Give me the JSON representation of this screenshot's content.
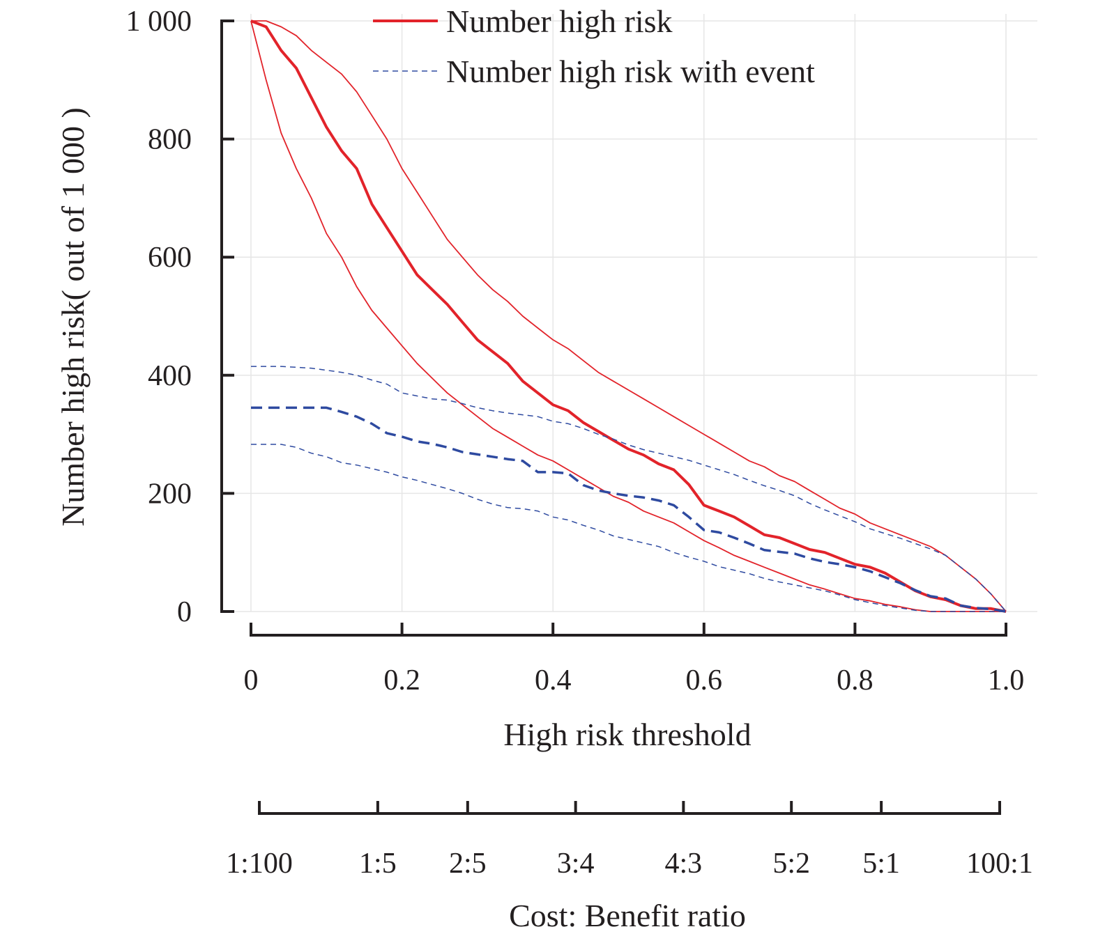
{
  "chart_data": {
    "type": "line",
    "xlabel": "High risk threshold",
    "ylabel": "Number high risk",
    "ylabel_suffix": "( out of 1 000 )",
    "secondary_xlabel": "Cost: Benefit ratio",
    "xlim": [
      0,
      1
    ],
    "ylim": [
      0,
      1000
    ],
    "grid": true,
    "legend_position": "top",
    "x_ticks": [
      0,
      0.2,
      0.4,
      0.6,
      0.8,
      1.0
    ],
    "x_tick_labels": [
      "0",
      "0.2",
      "0.4",
      "0.6",
      "0.8",
      "1.0"
    ],
    "y_ticks": [
      0,
      200,
      400,
      600,
      800,
      1000
    ],
    "y_tick_labels": [
      "0",
      "200",
      "400",
      "600",
      "800",
      "1 000"
    ],
    "secondary_ticks": [
      0.0099,
      0.1667,
      0.2857,
      0.4286,
      0.5714,
      0.7143,
      0.8333,
      0.9901
    ],
    "secondary_tick_labels": [
      "1:100",
      "1:5",
      "2:5",
      "3:4",
      "4:3",
      "5:2",
      "5:1",
      "100:1"
    ],
    "legend": [
      {
        "label": "Number high risk",
        "color": "#e2232a",
        "style": "solid"
      },
      {
        "label": "Number high risk with event",
        "color": "#2e4aa0",
        "style": "dashed"
      }
    ],
    "series": [
      {
        "legend_ref": "Number high risk",
        "color": "#e2232a",
        "style": "solid",
        "width": 4,
        "points": [
          [
            0,
            1000
          ],
          [
            0.02,
            990
          ],
          [
            0.04,
            950
          ],
          [
            0.06,
            920
          ],
          [
            0.08,
            870
          ],
          [
            0.1,
            820
          ],
          [
            0.12,
            780
          ],
          [
            0.14,
            750
          ],
          [
            0.16,
            690
          ],
          [
            0.18,
            650
          ],
          [
            0.2,
            610
          ],
          [
            0.22,
            570
          ],
          [
            0.24,
            545
          ],
          [
            0.26,
            520
          ],
          [
            0.28,
            490
          ],
          [
            0.3,
            460
          ],
          [
            0.32,
            440
          ],
          [
            0.34,
            420
          ],
          [
            0.36,
            390
          ],
          [
            0.38,
            370
          ],
          [
            0.4,
            350
          ],
          [
            0.42,
            340
          ],
          [
            0.44,
            320
          ],
          [
            0.46,
            305
          ],
          [
            0.48,
            290
          ],
          [
            0.5,
            275
          ],
          [
            0.52,
            265
          ],
          [
            0.54,
            250
          ],
          [
            0.56,
            240
          ],
          [
            0.58,
            215
          ],
          [
            0.6,
            180
          ],
          [
            0.62,
            170
          ],
          [
            0.64,
            160
          ],
          [
            0.66,
            145
          ],
          [
            0.68,
            130
          ],
          [
            0.7,
            125
          ],
          [
            0.72,
            115
          ],
          [
            0.74,
            105
          ],
          [
            0.76,
            100
          ],
          [
            0.78,
            90
          ],
          [
            0.8,
            80
          ],
          [
            0.82,
            75
          ],
          [
            0.84,
            65
          ],
          [
            0.86,
            50
          ],
          [
            0.88,
            35
          ],
          [
            0.9,
            25
          ],
          [
            0.92,
            20
          ],
          [
            0.94,
            10
          ],
          [
            0.96,
            5
          ],
          [
            0.98,
            5
          ],
          [
            1.0,
            0
          ]
        ]
      },
      {
        "legend_ref": "Number high risk",
        "color": "#e2232a",
        "style": "solid",
        "width": 1.8,
        "points": [
          [
            0,
            1000
          ],
          [
            0.02,
            1000
          ],
          [
            0.04,
            990
          ],
          [
            0.06,
            975
          ],
          [
            0.08,
            950
          ],
          [
            0.1,
            930
          ],
          [
            0.12,
            910
          ],
          [
            0.14,
            880
          ],
          [
            0.16,
            840
          ],
          [
            0.18,
            800
          ],
          [
            0.2,
            750
          ],
          [
            0.22,
            710
          ],
          [
            0.24,
            670
          ],
          [
            0.26,
            630
          ],
          [
            0.28,
            600
          ],
          [
            0.3,
            570
          ],
          [
            0.32,
            545
          ],
          [
            0.34,
            525
          ],
          [
            0.36,
            500
          ],
          [
            0.38,
            480
          ],
          [
            0.4,
            460
          ],
          [
            0.42,
            445
          ],
          [
            0.44,
            425
          ],
          [
            0.46,
            405
          ],
          [
            0.48,
            390
          ],
          [
            0.5,
            375
          ],
          [
            0.52,
            360
          ],
          [
            0.54,
            345
          ],
          [
            0.56,
            330
          ],
          [
            0.58,
            315
          ],
          [
            0.6,
            300
          ],
          [
            0.62,
            285
          ],
          [
            0.64,
            270
          ],
          [
            0.66,
            255
          ],
          [
            0.68,
            245
          ],
          [
            0.7,
            230
          ],
          [
            0.72,
            220
          ],
          [
            0.74,
            205
          ],
          [
            0.76,
            190
          ],
          [
            0.78,
            175
          ],
          [
            0.8,
            165
          ],
          [
            0.82,
            150
          ],
          [
            0.84,
            140
          ],
          [
            0.86,
            130
          ],
          [
            0.88,
            120
          ],
          [
            0.9,
            110
          ],
          [
            0.92,
            95
          ],
          [
            0.94,
            75
          ],
          [
            0.96,
            55
          ],
          [
            0.98,
            30
          ],
          [
            1.0,
            0
          ]
        ]
      },
      {
        "legend_ref": "Number high risk",
        "color": "#e2232a",
        "style": "solid",
        "width": 1.8,
        "points": [
          [
            0,
            1000
          ],
          [
            0.02,
            900
          ],
          [
            0.04,
            810
          ],
          [
            0.06,
            750
          ],
          [
            0.08,
            700
          ],
          [
            0.1,
            640
          ],
          [
            0.12,
            600
          ],
          [
            0.14,
            550
          ],
          [
            0.16,
            510
          ],
          [
            0.18,
            480
          ],
          [
            0.2,
            450
          ],
          [
            0.22,
            420
          ],
          [
            0.24,
            395
          ],
          [
            0.26,
            370
          ],
          [
            0.28,
            350
          ],
          [
            0.3,
            330
          ],
          [
            0.32,
            310
          ],
          [
            0.34,
            295
          ],
          [
            0.36,
            280
          ],
          [
            0.38,
            265
          ],
          [
            0.4,
            255
          ],
          [
            0.42,
            240
          ],
          [
            0.44,
            225
          ],
          [
            0.46,
            210
          ],
          [
            0.48,
            195
          ],
          [
            0.5,
            185
          ],
          [
            0.52,
            170
          ],
          [
            0.54,
            160
          ],
          [
            0.56,
            150
          ],
          [
            0.58,
            135
          ],
          [
            0.6,
            120
          ],
          [
            0.62,
            108
          ],
          [
            0.64,
            95
          ],
          [
            0.66,
            85
          ],
          [
            0.68,
            75
          ],
          [
            0.7,
            65
          ],
          [
            0.72,
            55
          ],
          [
            0.74,
            45
          ],
          [
            0.76,
            38
          ],
          [
            0.78,
            30
          ],
          [
            0.8,
            22
          ],
          [
            0.82,
            18
          ],
          [
            0.84,
            12
          ],
          [
            0.86,
            8
          ],
          [
            0.88,
            3
          ],
          [
            0.9,
            0
          ],
          [
            0.92,
            0
          ],
          [
            0.94,
            0
          ],
          [
            0.96,
            0
          ],
          [
            0.98,
            0
          ],
          [
            1.0,
            0
          ]
        ]
      },
      {
        "legend_ref": "Number high risk with event",
        "color": "#2e4aa0",
        "style": "dashed",
        "width": 3.5,
        "points": [
          [
            0,
            345
          ],
          [
            0.04,
            345
          ],
          [
            0.08,
            345
          ],
          [
            0.1,
            345
          ],
          [
            0.12,
            338
          ],
          [
            0.14,
            330
          ],
          [
            0.16,
            318
          ],
          [
            0.18,
            302
          ],
          [
            0.2,
            296
          ],
          [
            0.22,
            288
          ],
          [
            0.24,
            284
          ],
          [
            0.26,
            278
          ],
          [
            0.28,
            270
          ],
          [
            0.3,
            266
          ],
          [
            0.32,
            262
          ],
          [
            0.34,
            258
          ],
          [
            0.36,
            255
          ],
          [
            0.38,
            236
          ],
          [
            0.4,
            236
          ],
          [
            0.42,
            234
          ],
          [
            0.44,
            214
          ],
          [
            0.46,
            205
          ],
          [
            0.48,
            200
          ],
          [
            0.5,
            196
          ],
          [
            0.52,
            193
          ],
          [
            0.54,
            188
          ],
          [
            0.56,
            180
          ],
          [
            0.58,
            160
          ],
          [
            0.6,
            138
          ],
          [
            0.62,
            134
          ],
          [
            0.64,
            125
          ],
          [
            0.66,
            115
          ],
          [
            0.68,
            104
          ],
          [
            0.7,
            101
          ],
          [
            0.72,
            98
          ],
          [
            0.74,
            90
          ],
          [
            0.76,
            84
          ],
          [
            0.78,
            80
          ],
          [
            0.8,
            75
          ],
          [
            0.82,
            68
          ],
          [
            0.84,
            58
          ],
          [
            0.86,
            48
          ],
          [
            0.88,
            36
          ],
          [
            0.9,
            26
          ],
          [
            0.92,
            22
          ],
          [
            0.94,
            10
          ],
          [
            0.96,
            6
          ],
          [
            0.98,
            4
          ],
          [
            1.0,
            0
          ]
        ]
      },
      {
        "legend_ref": "Number high risk with event",
        "color": "#2e4aa0",
        "style": "dashed",
        "width": 1.5,
        "points": [
          [
            0,
            415
          ],
          [
            0.04,
            415
          ],
          [
            0.08,
            412
          ],
          [
            0.12,
            405
          ],
          [
            0.14,
            400
          ],
          [
            0.16,
            392
          ],
          [
            0.18,
            385
          ],
          [
            0.2,
            370
          ],
          [
            0.22,
            365
          ],
          [
            0.24,
            360
          ],
          [
            0.26,
            358
          ],
          [
            0.28,
            352
          ],
          [
            0.3,
            345
          ],
          [
            0.32,
            340
          ],
          [
            0.34,
            336
          ],
          [
            0.36,
            333
          ],
          [
            0.38,
            330
          ],
          [
            0.4,
            322
          ],
          [
            0.42,
            318
          ],
          [
            0.44,
            310
          ],
          [
            0.46,
            300
          ],
          [
            0.48,
            292
          ],
          [
            0.5,
            282
          ],
          [
            0.52,
            274
          ],
          [
            0.54,
            268
          ],
          [
            0.56,
            262
          ],
          [
            0.58,
            256
          ],
          [
            0.6,
            248
          ],
          [
            0.62,
            240
          ],
          [
            0.64,
            232
          ],
          [
            0.66,
            222
          ],
          [
            0.68,
            213
          ],
          [
            0.7,
            205
          ],
          [
            0.72,
            196
          ],
          [
            0.74,
            183
          ],
          [
            0.76,
            172
          ],
          [
            0.78,
            162
          ],
          [
            0.8,
            152
          ],
          [
            0.82,
            140
          ],
          [
            0.84,
            132
          ],
          [
            0.86,
            124
          ],
          [
            0.88,
            115
          ],
          [
            0.9,
            106
          ],
          [
            0.92,
            95
          ],
          [
            0.94,
            75
          ],
          [
            0.96,
            55
          ],
          [
            0.98,
            30
          ],
          [
            1.0,
            0
          ]
        ]
      },
      {
        "legend_ref": "Number high risk with event",
        "color": "#2e4aa0",
        "style": "dashed",
        "width": 1.5,
        "points": [
          [
            0,
            283
          ],
          [
            0.04,
            283
          ],
          [
            0.06,
            278
          ],
          [
            0.08,
            268
          ],
          [
            0.1,
            262
          ],
          [
            0.12,
            252
          ],
          [
            0.14,
            248
          ],
          [
            0.16,
            242
          ],
          [
            0.18,
            236
          ],
          [
            0.2,
            228
          ],
          [
            0.22,
            222
          ],
          [
            0.24,
            215
          ],
          [
            0.26,
            208
          ],
          [
            0.28,
            200
          ],
          [
            0.3,
            190
          ],
          [
            0.32,
            182
          ],
          [
            0.34,
            176
          ],
          [
            0.36,
            174
          ],
          [
            0.38,
            170
          ],
          [
            0.4,
            160
          ],
          [
            0.42,
            155
          ],
          [
            0.44,
            146
          ],
          [
            0.46,
            138
          ],
          [
            0.48,
            128
          ],
          [
            0.5,
            122
          ],
          [
            0.52,
            116
          ],
          [
            0.54,
            110
          ],
          [
            0.56,
            100
          ],
          [
            0.58,
            92
          ],
          [
            0.6,
            85
          ],
          [
            0.62,
            76
          ],
          [
            0.64,
            70
          ],
          [
            0.66,
            64
          ],
          [
            0.68,
            56
          ],
          [
            0.7,
            50
          ],
          [
            0.72,
            45
          ],
          [
            0.74,
            40
          ],
          [
            0.76,
            35
          ],
          [
            0.78,
            28
          ],
          [
            0.8,
            20
          ],
          [
            0.82,
            15
          ],
          [
            0.84,
            10
          ],
          [
            0.86,
            6
          ],
          [
            0.88,
            2
          ],
          [
            0.9,
            0
          ],
          [
            0.94,
            0
          ],
          [
            1.0,
            0
          ]
        ]
      }
    ]
  }
}
